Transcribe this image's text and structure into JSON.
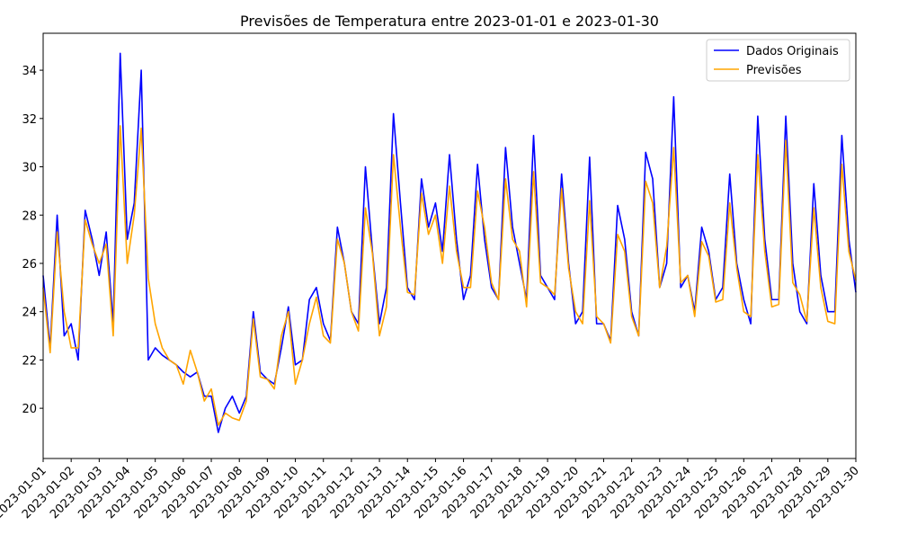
{
  "chart_data": {
    "type": "line",
    "title": "Previsões de Temperatura entre 2023-01-01 e 2023-01-30",
    "x": [
      0,
      0.25,
      0.5,
      0.75,
      1,
      1.25,
      1.5,
      1.75,
      2,
      2.25,
      2.5,
      2.75,
      3,
      3.25,
      3.5,
      3.75,
      4,
      4.25,
      4.5,
      4.75,
      5,
      5.25,
      5.5,
      5.75,
      6,
      6.25,
      6.5,
      6.75,
      7,
      7.25,
      7.5,
      7.75,
      8,
      8.25,
      8.5,
      8.75,
      9,
      9.25,
      9.5,
      9.75,
      10,
      10.25,
      10.5,
      10.75,
      11,
      11.25,
      11.5,
      11.75,
      12,
      12.25,
      12.5,
      12.75,
      13,
      13.25,
      13.5,
      13.75,
      14,
      14.25,
      14.5,
      14.75,
      15,
      15.25,
      15.5,
      15.75,
      16,
      16.25,
      16.5,
      16.75,
      17,
      17.25,
      17.5,
      17.75,
      18,
      18.25,
      18.5,
      18.75,
      19,
      19.25,
      19.5,
      19.75,
      20,
      20.25,
      20.5,
      20.75,
      21,
      21.25,
      21.5,
      21.75,
      22,
      22.25,
      22.5,
      22.75,
      23,
      23.25,
      23.5,
      23.75,
      24,
      24.25,
      24.5,
      24.75,
      25,
      25.25,
      25.5,
      25.75,
      26,
      26.25,
      26.5,
      26.75,
      27,
      27.25,
      27.5,
      27.75,
      28,
      28.25,
      28.5,
      28.75,
      29
    ],
    "series": [
      {
        "name": "Dados Originais",
        "color": "#0000ff",
        "values": [
          25.5,
          22.5,
          28.0,
          23.0,
          23.5,
          22.0,
          28.2,
          27.0,
          25.5,
          27.3,
          23.5,
          34.7,
          27.0,
          28.5,
          34.0,
          22.0,
          22.5,
          22.2,
          22.0,
          21.8,
          21.5,
          21.3,
          21.5,
          20.5,
          20.5,
          19.0,
          20.0,
          20.5,
          19.8,
          20.5,
          24.0,
          21.5,
          21.2,
          21.0,
          22.5,
          24.2,
          21.8,
          22.0,
          24.5,
          25.0,
          23.5,
          22.8,
          27.5,
          26.0,
          24.0,
          23.5,
          30.0,
          26.5,
          23.5,
          25.0,
          32.2,
          28.5,
          25.0,
          24.5,
          29.5,
          27.5,
          28.5,
          26.5,
          30.5,
          27.0,
          24.5,
          25.5,
          30.1,
          27.0,
          25.0,
          24.5,
          30.8,
          27.5,
          26.0,
          24.5,
          31.3,
          25.5,
          25.0,
          24.5,
          29.7,
          26.0,
          23.5,
          24.0,
          30.4,
          23.5,
          23.5,
          22.8,
          28.4,
          27.0,
          24.0,
          23.0,
          30.6,
          29.5,
          25.0,
          26.0,
          32.9,
          25.0,
          25.5,
          24.0,
          27.5,
          26.5,
          24.5,
          25.0,
          29.7,
          26.0,
          24.5,
          23.5,
          32.1,
          27.0,
          24.5,
          24.5,
          32.1,
          26.0,
          24.0,
          23.5,
          29.3,
          25.5,
          24.0,
          24.0,
          31.3,
          27.0,
          24.8
        ]
      },
      {
        "name": "Previsões",
        "color": "#ffa500",
        "values": [
          25.0,
          22.3,
          27.3,
          24.0,
          22.5,
          22.5,
          27.8,
          26.8,
          26.0,
          26.8,
          23.0,
          31.7,
          26.0,
          28.0,
          31.6,
          25.4,
          23.5,
          22.5,
          22.0,
          21.8,
          21.0,
          22.4,
          21.5,
          20.3,
          20.8,
          19.3,
          19.8,
          19.6,
          19.5,
          20.3,
          23.7,
          21.3,
          21.2,
          20.8,
          23.0,
          24.0,
          21.0,
          22.0,
          23.5,
          24.6,
          23.0,
          22.7,
          27.0,
          26.0,
          24.0,
          23.2,
          28.3,
          26.4,
          23.0,
          24.2,
          30.5,
          27.5,
          24.8,
          24.7,
          28.9,
          27.2,
          28.0,
          26.0,
          29.2,
          26.5,
          25.0,
          25.0,
          29.0,
          27.5,
          25.2,
          24.5,
          29.5,
          27.0,
          26.5,
          24.2,
          29.8,
          25.2,
          25.0,
          24.7,
          29.1,
          25.8,
          24.0,
          23.5,
          28.6,
          23.8,
          23.5,
          22.7,
          27.2,
          26.5,
          23.8,
          23.0,
          29.4,
          28.5,
          25.0,
          26.7,
          30.8,
          25.2,
          25.5,
          23.8,
          26.9,
          26.3,
          24.4,
          24.5,
          28.5,
          25.8,
          24.0,
          23.8,
          30.5,
          26.5,
          24.2,
          24.3,
          31.1,
          25.2,
          24.7,
          23.6,
          28.3,
          25.0,
          23.6,
          23.5,
          30.1,
          26.5,
          25.3
        ]
      }
    ],
    "xlim": [
      0,
      29
    ],
    "xticks": [
      {
        "value": 0,
        "label": "2023-01-01"
      },
      {
        "value": 1,
        "label": "2023-01-02"
      },
      {
        "value": 2,
        "label": "2023-01-03"
      },
      {
        "value": 3,
        "label": "2023-01-04"
      },
      {
        "value": 4,
        "label": "2023-01-05"
      },
      {
        "value": 5,
        "label": "2023-01-06"
      },
      {
        "value": 6,
        "label": "2023-01-07"
      },
      {
        "value": 7,
        "label": "2023-01-08"
      },
      {
        "value": 8,
        "label": "2023-01-09"
      },
      {
        "value": 9,
        "label": "2023-01-10"
      },
      {
        "value": 10,
        "label": "2023-01-11"
      },
      {
        "value": 11,
        "label": "2023-01-12"
      },
      {
        "value": 12,
        "label": "2023-01-13"
      },
      {
        "value": 13,
        "label": "2023-01-14"
      },
      {
        "value": 14,
        "label": "2023-01-15"
      },
      {
        "value": 15,
        "label": "2023-01-16"
      },
      {
        "value": 16,
        "label": "2023-01-17"
      },
      {
        "value": 17,
        "label": "2023-01-18"
      },
      {
        "value": 18,
        "label": "2023-01-19"
      },
      {
        "value": 19,
        "label": "2023-01-20"
      },
      {
        "value": 20,
        "label": "2023-01-21"
      },
      {
        "value": 21,
        "label": "2023-01-22"
      },
      {
        "value": 22,
        "label": "2023-01-23"
      },
      {
        "value": 23,
        "label": "2023-01-24"
      },
      {
        "value": 24,
        "label": "2023-01-25"
      },
      {
        "value": 25,
        "label": "2023-01-26"
      },
      {
        "value": 26,
        "label": "2023-01-27"
      },
      {
        "value": 27,
        "label": "2023-01-28"
      },
      {
        "value": 28,
        "label": "2023-01-29"
      },
      {
        "value": 29,
        "label": "2023-01-30"
      }
    ],
    "ylim": [
      17.92,
      35.53
    ],
    "yticks": [
      20,
      22,
      24,
      26,
      28,
      30,
      32,
      34
    ],
    "grid": false,
    "legend": "upper right"
  }
}
